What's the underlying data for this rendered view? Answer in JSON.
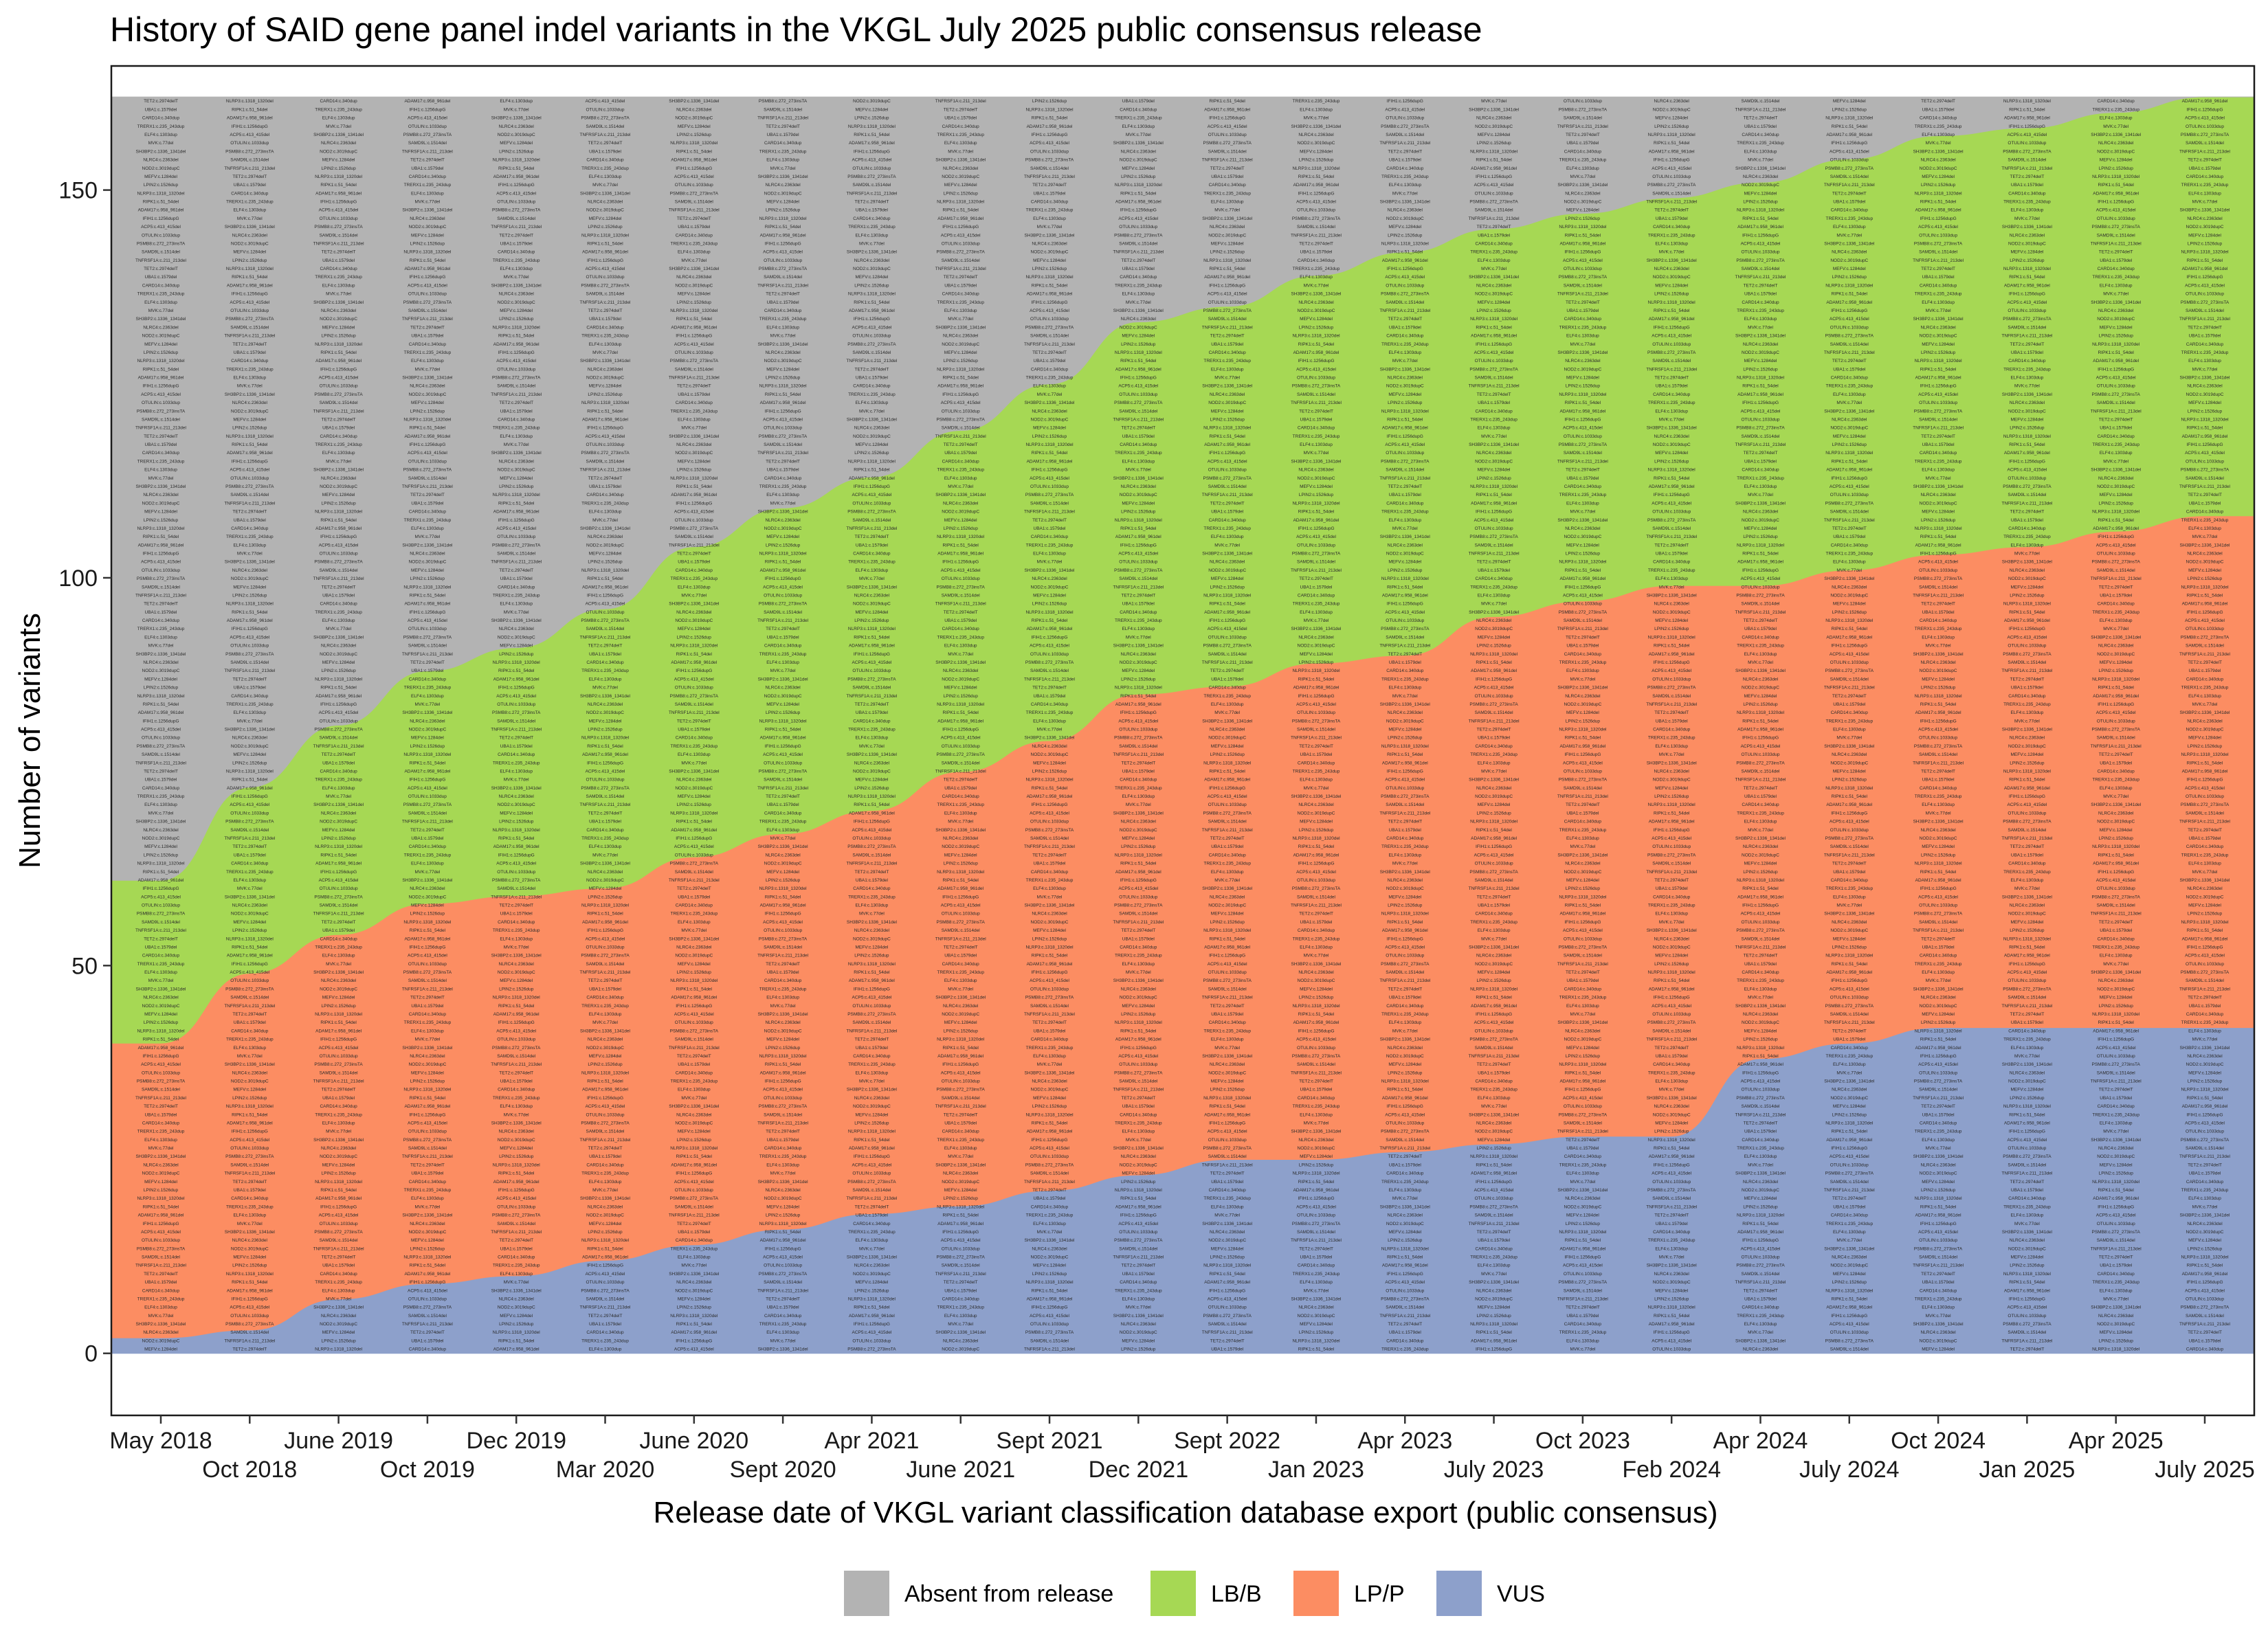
{
  "chart_data": {
    "type": "area",
    "title": "History of SAID gene panel indel variants in the VKGL July 2025 public consensus release",
    "xlabel": "Release date of VKGL variant classification database export (public consensus)",
    "ylabel": "Number of variants",
    "categories": [
      "May 2018",
      "Oct 2018",
      "June 2019",
      "Oct 2019",
      "Dec 2019",
      "Mar 2020",
      "June 2020",
      "Sept 2020",
      "Apr 2021",
      "June 2021",
      "Sept 2021",
      "Dec 2021",
      "Sept 2022",
      "Jan 2023",
      "Apr 2023",
      "July 2023",
      "Oct 2023",
      "Feb 2024",
      "Apr 2024",
      "July 2024",
      "Oct 2024",
      "Jan 2025",
      "Apr 2025",
      "July 2025"
    ],
    "ylim": [
      -8,
      166
    ],
    "y_ticks": [
      0,
      50,
      100,
      150
    ],
    "stack_order": [
      "VUS",
      "LP/P",
      "LB/B",
      "Absent from release"
    ],
    "series": [
      {
        "name": "VUS",
        "color": "#8DA0CB",
        "values": [
          2,
          3,
          7,
          9,
          10,
          12,
          14,
          16,
          18,
          19,
          21,
          23,
          25,
          25,
          26,
          27,
          28,
          28,
          38,
          40,
          42,
          42,
          42,
          42
        ]
      },
      {
        "name": "LP/P",
        "color": "#FC8D62",
        "values": [
          38,
          46,
          47,
          49,
          49,
          48,
          50,
          51,
          52,
          56,
          58,
          62,
          61,
          64,
          64,
          68,
          69,
          71,
          61,
          61,
          61,
          62,
          64,
          66
        ]
      },
      {
        "name": "LB/B",
        "color": "#A6D854",
        "values": [
          21,
          24,
          27,
          30,
          32,
          36,
          40,
          42,
          43,
          44,
          46,
          48,
          49,
          50,
          52,
          50,
          50,
          50,
          52,
          53,
          54,
          54,
          54,
          54
        ]
      },
      {
        "name": "Absent from release",
        "color": "#B3B3B3",
        "values": [
          101,
          89,
          81,
          74,
          71,
          66,
          58,
          53,
          49,
          43,
          37,
          29,
          27,
          23,
          20,
          17,
          15,
          13,
          11,
          8,
          5,
          4,
          2,
          0
        ]
      }
    ],
    "cell_labels": [
      "MEFV:c.1284del",
      "SH3BP2:c.1336_1341del",
      "TRERX1:c.235_243dup",
      "TET2:c.2974delT",
      "PSMB8:c.272_273insTA",
      "IFIH1:c.1256dupG",
      "NLRP3:c.1318_1320del",
      "NOD2:c.3019dupC",
      "MVK:c.77del",
      "CARD14:c.340dup",
      "TNFRSF1A:c.211_213del",
      "OTULIN:c.1033dup",
      "ADAM17:c.958_961del",
      "LPIN2:c.1526dup",
      "NLRC4:c.2363del",
      "ELF4:c.1303dup",
      "UBA1:c.1579del",
      "SAMD9L:c.1514del",
      "ACP5:c.413_415del",
      "RIPK1:c.51_54del"
    ],
    "legend_position": "bottom",
    "grid": false
  }
}
